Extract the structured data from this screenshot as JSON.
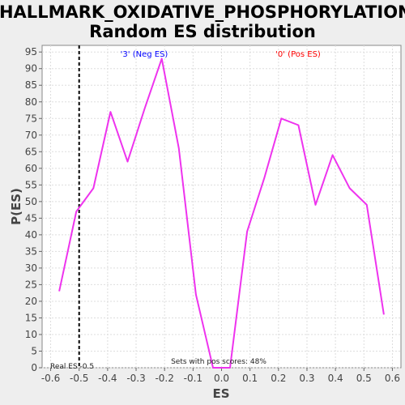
{
  "chart_data": {
    "type": "line",
    "title_line1": "HALLMARK_OXIDATIVE_PHOSPHORYLATION:",
    "title_line2": "Random ES distribution",
    "xlabel": "ES",
    "ylabel": "P(ES)",
    "xlim": [
      -0.63,
      0.63
    ],
    "ylim": [
      0,
      97
    ],
    "x_ticks": [
      "-0.6",
      "-0.5",
      "-0.4",
      "-0.3",
      "-0.2",
      "-0.1",
      "0.0",
      "0.1",
      "0.2",
      "0.3",
      "0.4",
      "0.5",
      "0.6"
    ],
    "y_ticks": [
      "0",
      "5",
      "10",
      "15",
      "20",
      "25",
      "30",
      "35",
      "40",
      "45",
      "50",
      "55",
      "60",
      "65",
      "70",
      "75",
      "80",
      "85",
      "90",
      "95"
    ],
    "grid": true,
    "series": [
      {
        "color": "#ee33ee",
        "x": [
          -0.57,
          -0.51,
          -0.45,
          -0.39,
          -0.33,
          -0.27,
          -0.21,
          -0.15,
          -0.09,
          -0.03,
          0.03,
          0.09,
          0.15,
          0.21,
          0.27,
          0.33,
          0.39,
          0.45,
          0.51,
          0.57
        ],
        "y": [
          23,
          47,
          54,
          77,
          62,
          78,
          93,
          66,
          22,
          0,
          0,
          41,
          57,
          75,
          73,
          49,
          64,
          54,
          49,
          16
        ]
      }
    ],
    "real_es": -0.5,
    "real_es_label": "Real ES -0.5",
    "neg_label": "'3' (Neg ES)",
    "pos_label": "'0' (Pos ES)",
    "neg_color": "#0000ff",
    "pos_color": "#ff0000",
    "sets_label": "Sets with pos scores: 48%"
  }
}
